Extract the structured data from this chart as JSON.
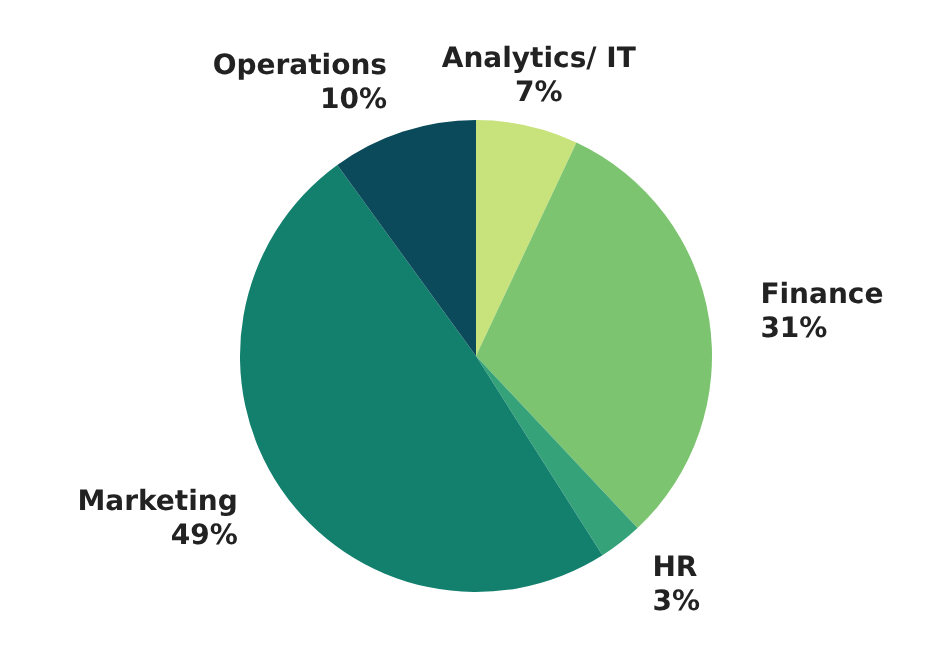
{
  "chart_data": {
    "type": "pie",
    "categories": [
      "Analytics/ IT",
      "Finance",
      "HR",
      "Marketing",
      "Operations"
    ],
    "values": [
      7,
      31,
      3,
      49,
      10
    ],
    "colors": [
      "#c8e27c",
      "#7cc46f",
      "#36a27a",
      "#13806e",
      "#0b4a5a"
    ],
    "value_labels": [
      "7%",
      "31%",
      "3%",
      "49%",
      "10%"
    ]
  }
}
